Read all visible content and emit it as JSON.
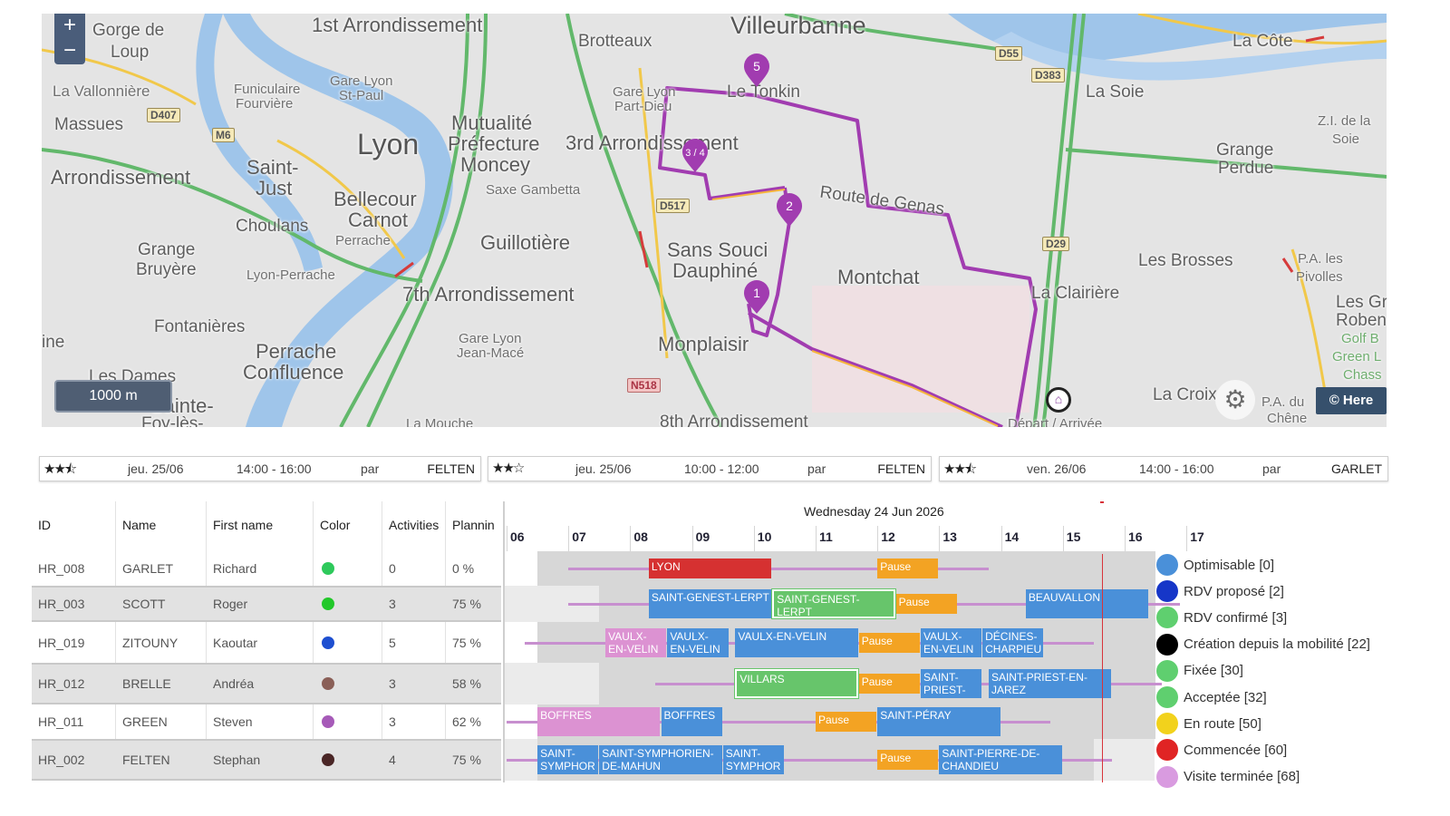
{
  "map": {
    "zoom_in": "+",
    "zoom_out": "−",
    "scale": "1000 m",
    "attribution": "© Here",
    "settings_icon": "gear-icon",
    "labels_big": [
      "Villeurbanne",
      "Lyon"
    ],
    "labels_large": [
      "1st Arrondissement",
      "3rd Arrondissement",
      "7th Arrondissement",
      "Sans Souci",
      "Dauphiné",
      "Montchat",
      "Monplaisir",
      "Bellecour",
      "Carnot",
      "Guillotière",
      "Perrache",
      "Confluence",
      "Saint-",
      "Just",
      "Mutualité",
      "Préfecture",
      "Moncey",
      "Arrondissement",
      "Brotteaux",
      "La Côte",
      "Gorge de",
      "Loup",
      "8th Arrondissement",
      "Sainte-",
      "Foy-lès-"
    ],
    "labels_medium": [
      "Route de Genas",
      "La Clairière",
      "Les Brosses",
      "La Soie",
      "Grange",
      "Perdue",
      "Le Tonkin",
      "La Croix",
      "Grange",
      "Bruyère",
      "Fontanières",
      "Choulans",
      "La Vallonnière",
      "Massues",
      "Les Dames",
      "Saxe Gambetta",
      "Gare Lyon",
      "Part-Dieu",
      "Gare Lyon",
      "Jean-Macé",
      "Gare Lyon",
      "St-Paul",
      "Funiculaire",
      "Fourvière",
      "Perrache",
      "Lyon-Perrache",
      "Z.I. de la",
      "Soie",
      "P.A. les",
      "Pivolles",
      "Les Gr",
      "Roben",
      "Golf B",
      "Green L",
      "Chass",
      "P.A. du",
      "Chêne",
      "Départ / Arrivée",
      "La Mouche",
      "ine"
    ],
    "road_badges": [
      "D407",
      "M6",
      "D517",
      "D29",
      "D55",
      "D383",
      "N518"
    ],
    "stops": [
      "1",
      "2",
      "3 / 4",
      "5"
    ]
  },
  "options": [
    {
      "rating": "★★⯪",
      "date": "jeu. 25/06",
      "time": "14:00 - 16:00",
      "by": "par",
      "name": "FELTEN"
    },
    {
      "rating": "★★☆",
      "date": "jeu. 25/06",
      "time": "10:00 - 12:00",
      "by": "par",
      "name": "FELTEN"
    },
    {
      "rating": "★★⯪",
      "date": "ven. 26/06",
      "time": "14:00 - 16:00",
      "by": "par",
      "name": "GARLET"
    }
  ],
  "table": {
    "headers": [
      "ID",
      "Name",
      "First name",
      "Color",
      "Activities",
      "Plannin"
    ],
    "rows": [
      {
        "id": "HR_008",
        "name": "GARLET",
        "first": "Richard",
        "color": "#2ec95b",
        "activities": "0",
        "planning": "0 %"
      },
      {
        "id": "HR_003",
        "name": "SCOTT",
        "first": "Roger",
        "color": "#22c82a",
        "activities": "3",
        "planning": "75 %"
      },
      {
        "id": "HR_019",
        "name": "ZITOUNY",
        "first": "Kaoutar",
        "color": "#1e4fd0",
        "activities": "5",
        "planning": "75 %"
      },
      {
        "id": "HR_012",
        "name": "BRELLE",
        "first": "Andréa",
        "color": "#8a5f57",
        "activities": "3",
        "planning": "58 %"
      },
      {
        "id": "HR_011",
        "name": "GREEN",
        "first": "Steven",
        "color": "#a65ab8",
        "activities": "3",
        "planning": "62 %"
      },
      {
        "id": "HR_002",
        "name": "FELTEN",
        "first": "Stephan",
        "color": "#4a2626",
        "activities": "4",
        "planning": "75 %"
      }
    ]
  },
  "gantt": {
    "date": "Wednesday 24 Jun 2026",
    "hours": [
      "06",
      "07",
      "08",
      "09",
      "10",
      "11",
      "12",
      "13",
      "14",
      "15",
      "16",
      "17"
    ],
    "rows": [
      {
        "tasks": [
          {
            "label": "LYON",
            "color": "red",
            "start": 8.3,
            "end": 10.3
          },
          {
            "label": "Pause",
            "color": "orange",
            "start": 12.0,
            "end": 13.0
          }
        ]
      },
      {
        "tasks": [
          {
            "label": "SAINT-GENEST-LERPT",
            "color": "blue",
            "start": 8.3,
            "end": 10.3
          },
          {
            "label": "SAINT-GENEST-LERPT",
            "color": "green",
            "start": 10.3,
            "end": 12.3
          },
          {
            "label": "Pause",
            "color": "orange",
            "start": 12.3,
            "end": 13.3
          },
          {
            "label": "BEAUVALLON",
            "color": "blue",
            "start": 14.4,
            "end": 16.4
          }
        ]
      },
      {
        "tasks": [
          {
            "label": "VAULX-EN-VELIN",
            "color": "pink",
            "start": 7.6,
            "end": 8.6
          },
          {
            "label": "VAULX-EN-VELIN",
            "color": "blue",
            "start": 8.6,
            "end": 9.6
          },
          {
            "label": "VAULX-EN-VELIN",
            "color": "blue",
            "start": 9.7,
            "end": 11.7
          },
          {
            "label": "Pause",
            "color": "orange",
            "start": 11.7,
            "end": 12.7
          },
          {
            "label": "VAULX-EN-VELIN",
            "color": "blue",
            "start": 12.7,
            "end": 13.7
          },
          {
            "label": "DÉCINES-CHARPIEU",
            "color": "blue",
            "start": 13.7,
            "end": 14.7
          }
        ]
      },
      {
        "tasks": [
          {
            "label": "VILLARS",
            "color": "green",
            "start": 9.7,
            "end": 11.7
          },
          {
            "label": "Pause",
            "color": "orange",
            "start": 11.7,
            "end": 12.7
          },
          {
            "label": "SAINT-PRIEST-EN-JAREZ",
            "color": "blue",
            "start": 12.7,
            "end": 13.7
          },
          {
            "label": "SAINT-PRIEST-EN-JAREZ",
            "color": "blue",
            "start": 13.8,
            "end": 15.8
          }
        ]
      },
      {
        "tasks": [
          {
            "label": "BOFFRES",
            "color": "pink",
            "start": 6.5,
            "end": 8.5
          },
          {
            "label": "BOFFRES",
            "color": "blue",
            "start": 8.5,
            "end": 9.5
          },
          {
            "label": "Pause",
            "color": "orange",
            "start": 11.0,
            "end": 12.0
          },
          {
            "label": "SAINT-PÉRAY",
            "color": "blue",
            "start": 12.0,
            "end": 14.0
          }
        ]
      },
      {
        "tasks": [
          {
            "label": "SAINT-SYMPHORIEN-DE-MAHUN",
            "color": "blue",
            "start": 6.5,
            "end": 7.5
          },
          {
            "label": "SAINT-SYMPHORIEN-DE-MAHUN",
            "color": "blue",
            "start": 7.5,
            "end": 9.5
          },
          {
            "label": "SAINT-SYMPHORIEN-DE-MAHUN",
            "color": "blue",
            "start": 9.5,
            "end": 10.5
          },
          {
            "label": "Pause",
            "color": "orange",
            "start": 12.0,
            "end": 13.0
          },
          {
            "label": "SAINT-PIERRE-DE-CHANDIEU",
            "color": "blue",
            "start": 13.0,
            "end": 15.0
          }
        ]
      }
    ]
  },
  "legend": [
    {
      "label": "Optimisable [0]",
      "color": "#4a90d9"
    },
    {
      "label": "RDV proposé [2]",
      "color": "#1636c8"
    },
    {
      "label": "RDV confirmé [3]",
      "color": "#5fcf6f"
    },
    {
      "label": "Création depuis la mobilité [22]",
      "color": "#000000"
    },
    {
      "label": "Fixée [30]",
      "color": "#5fcf6f"
    },
    {
      "label": "Acceptée [32]",
      "color": "#5fcf6f"
    },
    {
      "label": "En route [50]",
      "color": "#f2d21c"
    },
    {
      "label": "Commencée [60]",
      "color": "#e02424"
    },
    {
      "label": "Visite terminée [68]",
      "color": "#d99be0"
    }
  ]
}
